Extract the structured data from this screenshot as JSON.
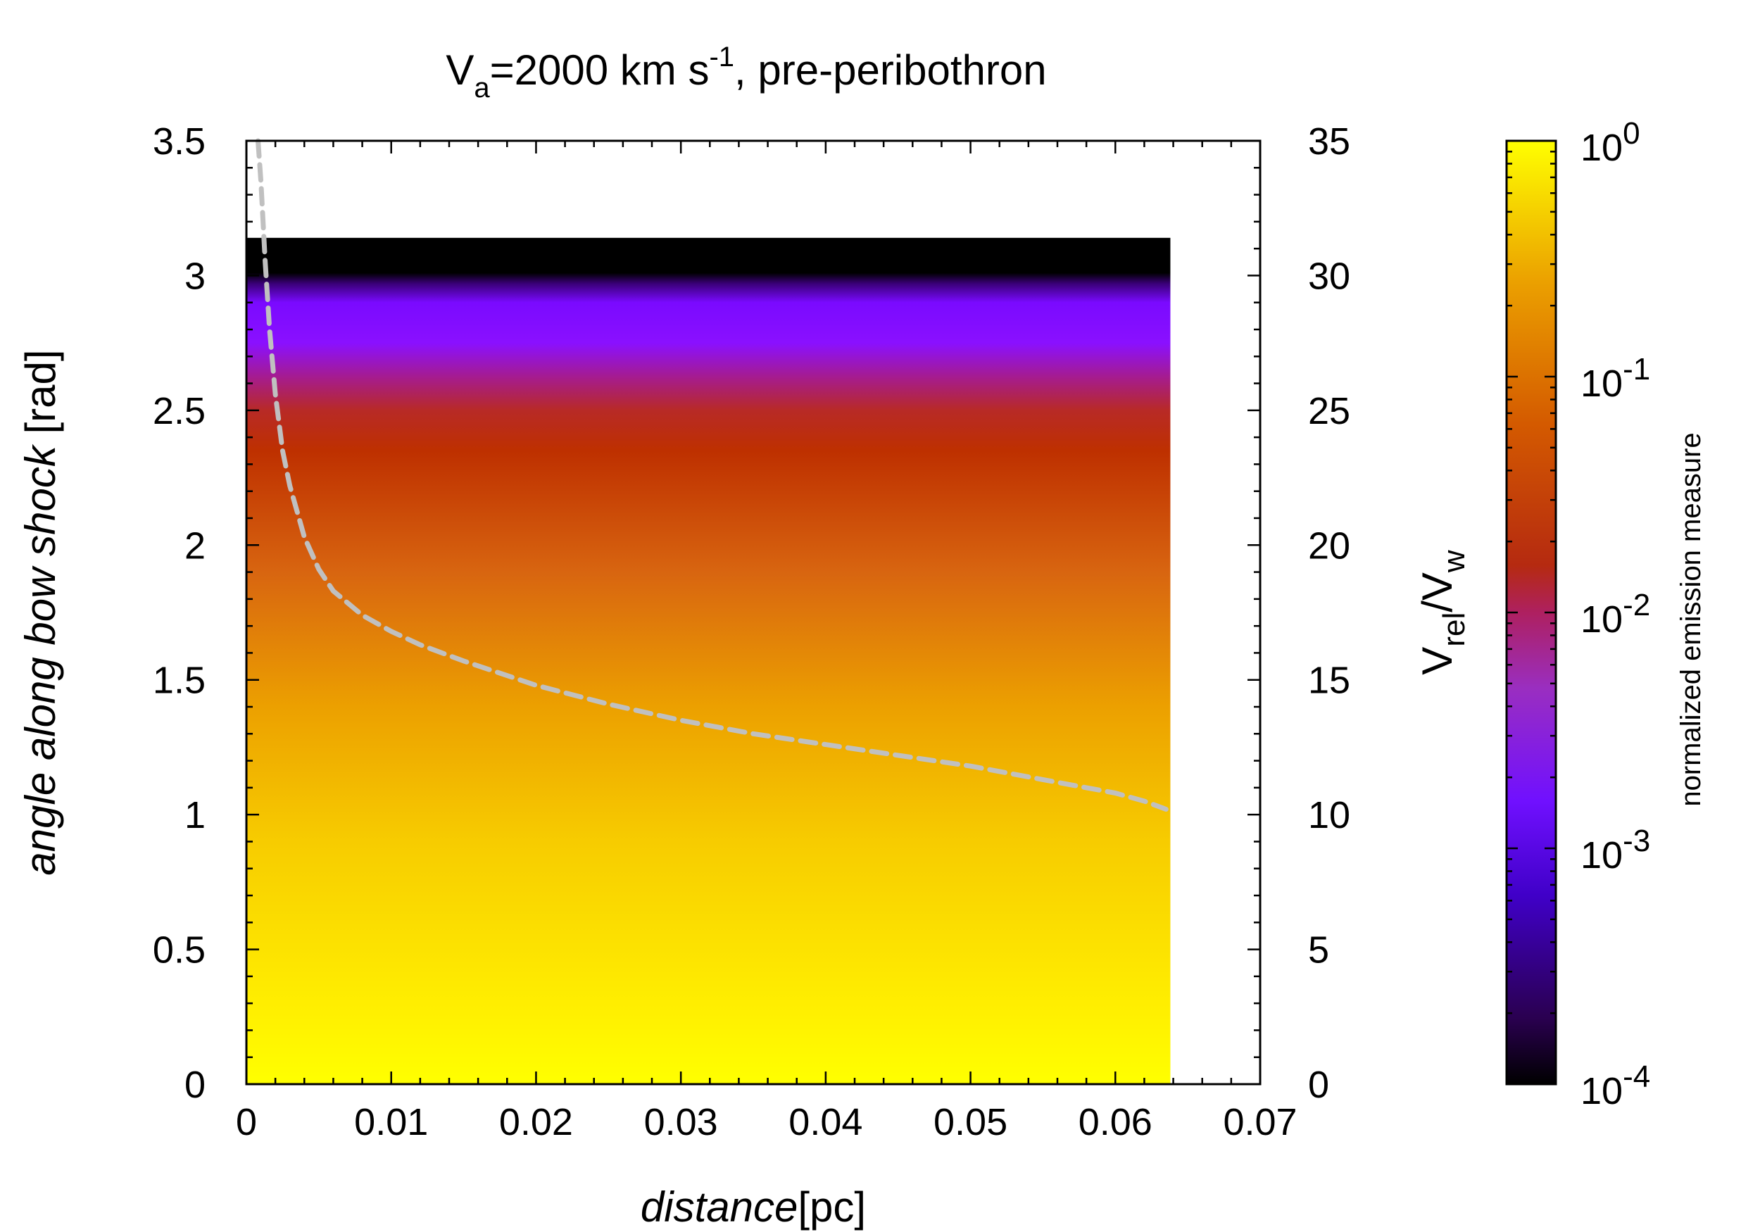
{
  "chart_data": {
    "type": "heatmap",
    "title": {
      "v": "V",
      "sub": "a",
      "rest": "=2000 km s",
      "sup": "-1",
      "tail": ", pre-peribothron"
    },
    "xlabel": {
      "italic": "distance",
      "unit": "[pc]"
    },
    "ylabel": {
      "italic": "angle along bow shock",
      "unit": " [rad]"
    },
    "y2label": {
      "v1": "V",
      "sub1": "rel",
      "slash": "/V",
      "sub2": "w"
    },
    "colorbar_label": "normalized emission measure",
    "xlim": [
      0,
      0.07
    ],
    "ylim": [
      0,
      3.5
    ],
    "y2lim": [
      0,
      35
    ],
    "x_ticks": [
      "0",
      "0.01",
      "0.02",
      "0.03",
      "0.04",
      "0.05",
      "0.06",
      "0.07"
    ],
    "y_ticks": [
      "0",
      "0.5",
      "1",
      "1.5",
      "2",
      "2.5",
      "3",
      "3.5"
    ],
    "y2_ticks": [
      "0",
      "5",
      "10",
      "15",
      "20",
      "25",
      "30",
      "35"
    ],
    "colorbar_ticks": [
      {
        "base": "10",
        "exp": "0"
      },
      {
        "base": "10",
        "exp": "-1"
      },
      {
        "base": "10",
        "exp": "-2"
      },
      {
        "base": "10",
        "exp": "-3"
      },
      {
        "base": "10",
        "exp": "-4"
      }
    ],
    "colorbar_range_log10": [
      -4,
      0
    ],
    "heatmap": {
      "x_extent": [
        0,
        0.0638
      ],
      "y_extent": [
        0,
        3.14
      ],
      "profile_note": "emission varies with angle only",
      "profile": [
        {
          "angle": 0.0,
          "color": "#ffff00"
        },
        {
          "angle": 0.3,
          "color": "#ffee00"
        },
        {
          "angle": 0.9,
          "color": "#f7cc00"
        },
        {
          "angle": 1.4,
          "color": "#eca000"
        },
        {
          "angle": 1.9,
          "color": "#d86510"
        },
        {
          "angle": 2.35,
          "color": "#be3000"
        },
        {
          "angle": 2.5,
          "color": "#b82a26"
        },
        {
          "angle": 2.62,
          "color": "#a61c8c"
        },
        {
          "angle": 2.75,
          "color": "#8a10ff"
        },
        {
          "angle": 2.9,
          "color": "#7a0aff"
        },
        {
          "angle": 2.97,
          "color": "#3a0078"
        },
        {
          "angle": 3.01,
          "color": "#000000"
        },
        {
          "angle": 3.14,
          "color": "#000000"
        }
      ]
    },
    "series": [
      {
        "name": "Vrel/Vw",
        "axis": "y2",
        "style": "dashed",
        "color": "#c0c0c0",
        "x": [
          0.0008,
          0.001,
          0.0013,
          0.0016,
          0.002,
          0.0025,
          0.003,
          0.004,
          0.005,
          0.006,
          0.008,
          0.01,
          0.012,
          0.015,
          0.02,
          0.025,
          0.03,
          0.035,
          0.04,
          0.045,
          0.05,
          0.055,
          0.058,
          0.06,
          0.062,
          0.0635
        ],
        "y": [
          35,
          33.5,
          30.5,
          28,
          25.6,
          23.5,
          22.2,
          20.3,
          19.1,
          18.3,
          17.4,
          16.8,
          16.3,
          15.7,
          14.8,
          14.1,
          13.5,
          13.0,
          12.6,
          12.2,
          11.8,
          11.3,
          11.0,
          10.8,
          10.5,
          10.2
        ]
      }
    ]
  }
}
